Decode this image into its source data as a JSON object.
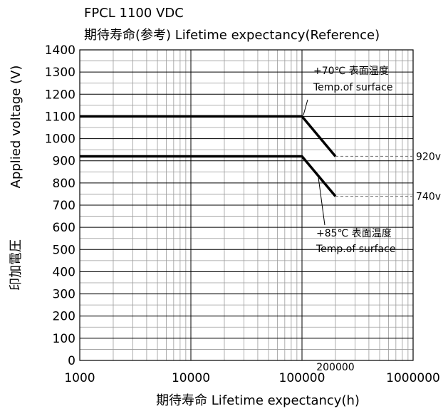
{
  "chart_data": {
    "type": "line",
    "title": "FPCL 1100 VDC",
    "subtitle": "期待寿命(参考) Lifetime expectancy(Reference)",
    "xlabel": "期待寿命 Lifetime expectancy(h)",
    "ylabel_en": "Applied voltage (V)",
    "ylabel_jp": "印加電圧",
    "x_scale": "log",
    "xlim": [
      1000,
      1000000
    ],
    "ylim": [
      0,
      1400
    ],
    "y_ticks": [
      0,
      100,
      200,
      300,
      400,
      500,
      600,
      700,
      800,
      900,
      1000,
      1100,
      1200,
      1300,
      1400
    ],
    "x_ticks": [
      {
        "value": 1000,
        "label": "1000"
      },
      {
        "value": 10000,
        "label": "10000"
      },
      {
        "value": 100000,
        "label": "100000"
      },
      {
        "value": 1000000,
        "label": "1000000"
      }
    ],
    "x_extra_tick": {
      "value": 200000,
      "label": "200000"
    },
    "grid": true,
    "series": [
      {
        "x": [
          1000,
          100000,
          200000
        ],
        "y": [
          1100,
          1100,
          920
        ]
      },
      {
        "x": [
          1000,
          100000,
          200000
        ],
        "y": [
          920,
          920,
          740
        ]
      }
    ],
    "reference_lines": [
      {
        "x_from": 200000,
        "y": 920,
        "label": "920v"
      },
      {
        "x_from": 200000,
        "y": 740,
        "label": "740v"
      }
    ],
    "annotations": [
      {
        "line1": "+70℃ 表面温度",
        "line2": "Temp.of surface",
        "target_x": 100000,
        "target_y": 1100
      },
      {
        "line1": "+85℃ 表面温度",
        "line2": "Temp.of surface",
        "target_x": 140000,
        "target_y": 830
      }
    ],
    "colors": {
      "series": "#000000",
      "grid_major": "#000000",
      "grid_minor": "#9a9a9a",
      "reference": "#7f7f7f"
    }
  }
}
